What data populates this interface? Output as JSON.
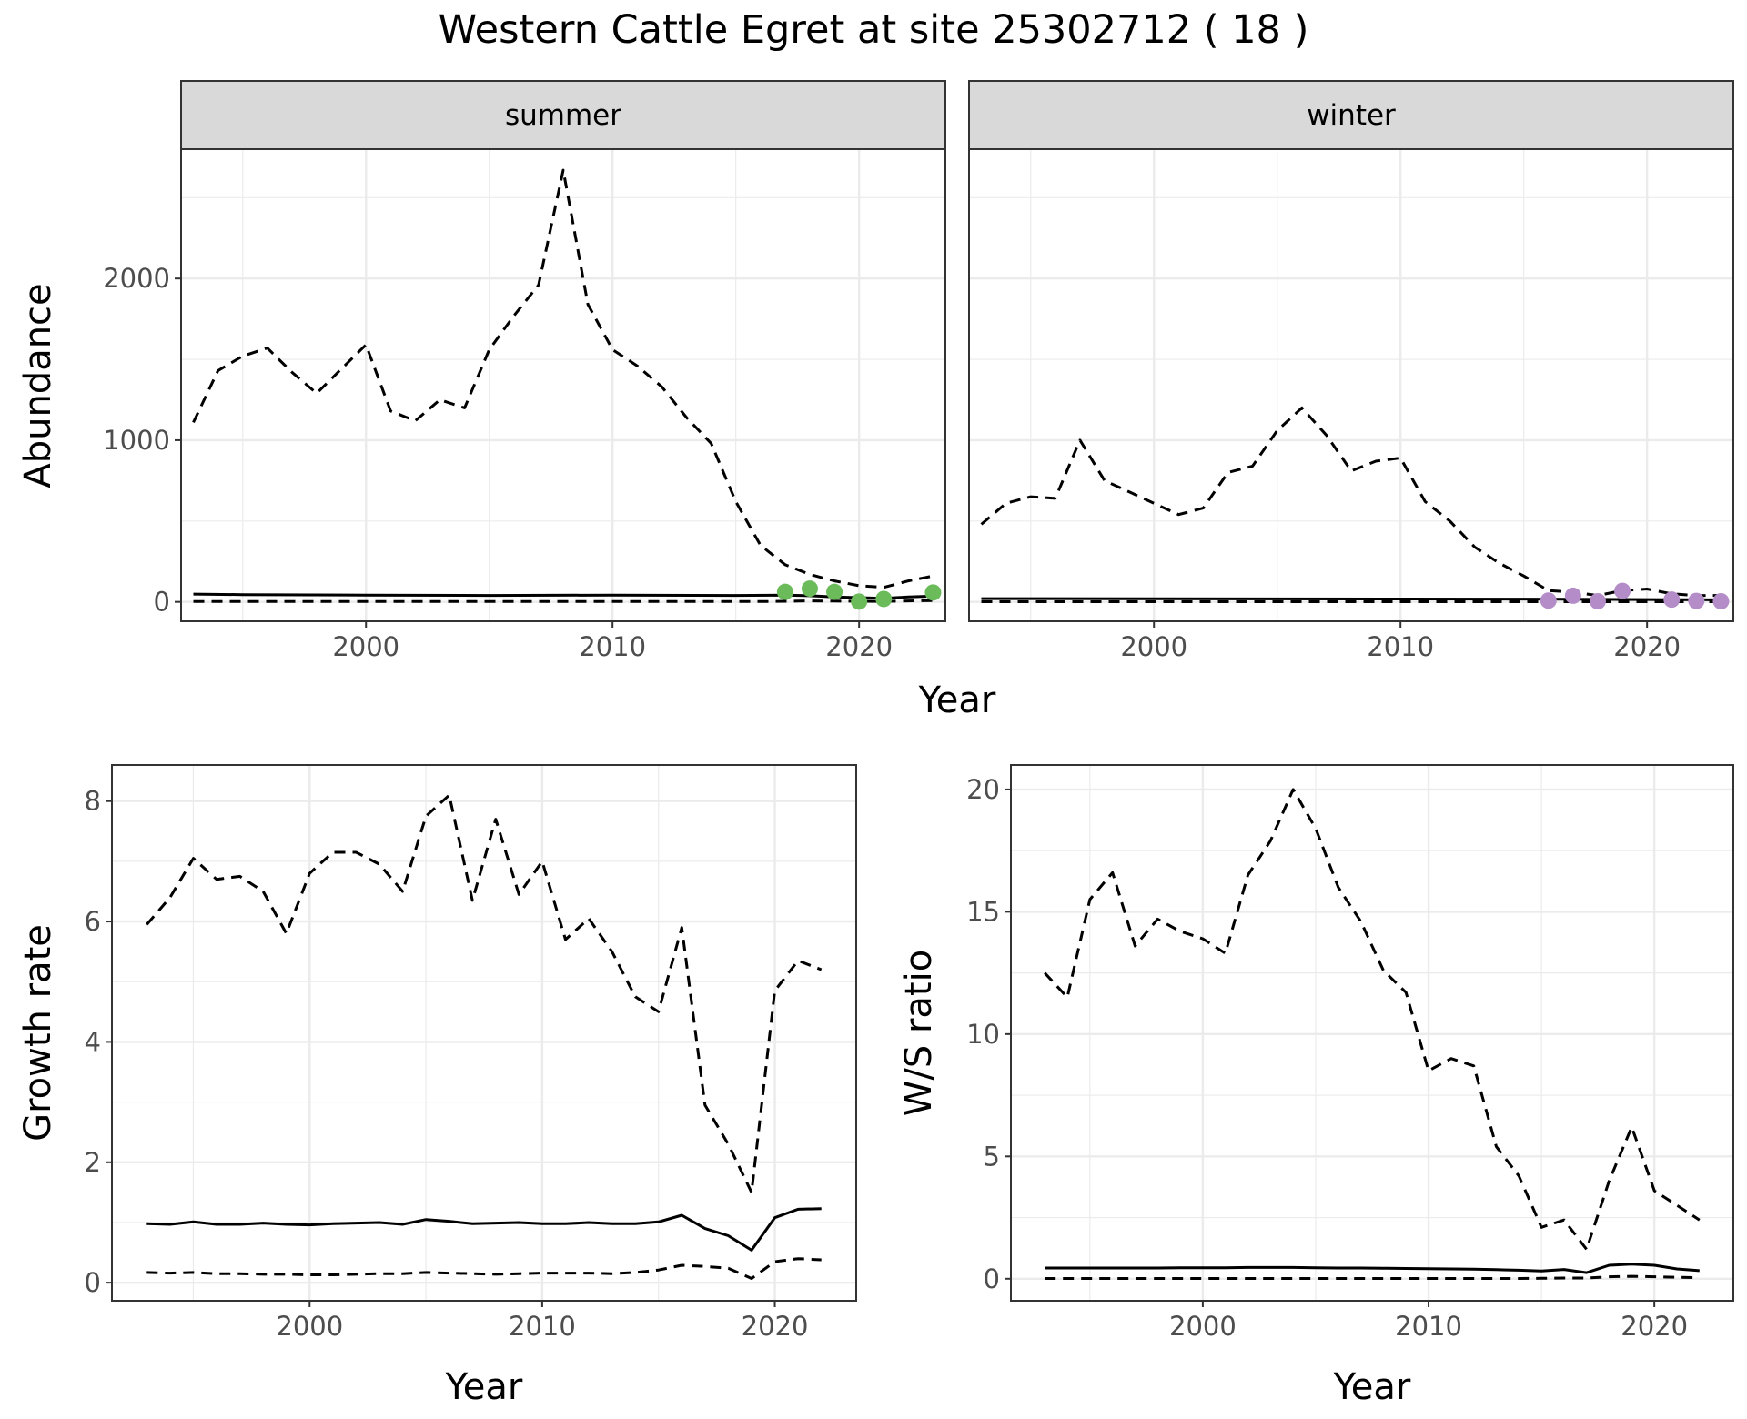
{
  "title": "Western Cattle Egret at site 25302712 ( 18 )",
  "colors": {
    "summer_points": "#6BBB5A",
    "winter_points": "#B48DC8",
    "strip_bg": "#D9D9D9",
    "grid": "#EBEBEB",
    "panel_border": "#333333"
  },
  "chart_data": [
    {
      "type": "line",
      "facets": [
        "summer",
        "winter"
      ],
      "xlabel": "Year",
      "ylabel": "Abundance",
      "xlim": [
        1992.5,
        2023.5
      ],
      "ylim": [
        -120,
        2800
      ],
      "xticks": [
        2000,
        2010,
        2020
      ],
      "yticks": [
        0,
        1000,
        2000
      ],
      "grid": true,
      "panels": [
        {
          "name": "summer",
          "upper": {
            "x": [
              1993,
              1994,
              1995,
              1996,
              1997,
              1998,
              1999,
              2000,
              2001,
              2002,
              2003,
              2004,
              2005,
              2006,
              2007,
              2008,
              2009,
              2010,
              2011,
              2012,
              2013,
              2014,
              2015,
              2016,
              2017,
              2018,
              2019,
              2020,
              2021,
              2022,
              2023
            ],
            "y": [
              1110,
              1430,
              1520,
              1570,
              1420,
              1290,
              1440,
              1590,
              1180,
              1120,
              1250,
              1200,
              1560,
              1770,
              1960,
              2670,
              1840,
              1560,
              1460,
              1330,
              1140,
              980,
              620,
              350,
              230,
              170,
              130,
              100,
              90,
              130,
              160
            ]
          },
          "mean": {
            "x": [
              1993,
              1995,
              2000,
              2005,
              2010,
              2015,
              2017,
              2018,
              2019,
              2020,
              2021,
              2022,
              2023
            ],
            "y": [
              48,
              45,
              42,
              40,
              42,
              40,
              42,
              38,
              30,
              26,
              22,
              30,
              36
            ]
          },
          "lower": {
            "x": [
              1993,
              2000,
              2010,
              2016,
              2017,
              2018,
              2019,
              2020,
              2021,
              2022,
              2023
            ],
            "y": [
              2,
              2,
              2,
              2,
              4,
              6,
              5,
              4,
              3,
              6,
              8
            ]
          },
          "points": {
            "x": [
              2017,
              2018,
              2019,
              2020,
              2021,
              2023
            ],
            "y": [
              62,
              82,
              62,
              2,
              18,
              58
            ]
          }
        },
        {
          "name": "winter",
          "upper": {
            "x": [
              1993,
              1994,
              1995,
              1996,
              1997,
              1998,
              1999,
              2000,
              2001,
              2002,
              2003,
              2004,
              2005,
              2006,
              2007,
              2008,
              2009,
              2010,
              2011,
              2012,
              2013,
              2014,
              2015,
              2016,
              2017,
              2018,
              2019,
              2020,
              2021,
              2022,
              2023
            ],
            "y": [
              480,
              610,
              650,
              640,
              1000,
              750,
              680,
              610,
              540,
              580,
              800,
              840,
              1060,
              1200,
              1030,
              810,
              870,
              890,
              620,
              500,
              340,
              240,
              160,
              70,
              60,
              40,
              70,
              80,
              50,
              40,
              40
            ]
          },
          "mean": {
            "x": [
              1993,
              2000,
              2010,
              2015,
              2017,
              2019,
              2021,
              2023
            ],
            "y": [
              20,
              19,
              18,
              17,
              16,
              15,
              14,
              13
            ]
          },
          "lower": {
            "x": [
              1993,
              2000,
              2010,
              2016,
              2020,
              2023
            ],
            "y": [
              1,
              1,
              1,
              1,
              1,
              1
            ]
          },
          "points": {
            "x": [
              2016,
              2017,
              2018,
              2019,
              2021,
              2022,
              2023
            ],
            "y": [
              8,
              38,
              4,
              68,
              14,
              6,
              4
            ]
          }
        }
      ]
    },
    {
      "type": "line",
      "xlabel": "Year",
      "ylabel": "Growth rate",
      "xlim": [
        1991.5,
        2023.5
      ],
      "ylim": [
        -0.3,
        8.6
      ],
      "xticks": [
        2000,
        2010,
        2020
      ],
      "yticks": [
        0,
        2,
        4,
        6,
        8
      ],
      "grid": true,
      "series": [
        {
          "x": [
            1993,
            1994,
            1995,
            1996,
            1997,
            1998,
            1999,
            2000,
            2001,
            2002,
            2003,
            2004,
            2005,
            2006,
            2007,
            2008,
            2009,
            2010,
            2011,
            2012,
            2013,
            2014,
            2015,
            2016,
            2017,
            2018,
            2019,
            2020,
            2021,
            2022
          ],
          "upper": [
            5.95,
            6.4,
            7.05,
            6.7,
            6.75,
            6.5,
            5.8,
            6.8,
            7.15,
            7.15,
            6.95,
            6.5,
            7.75,
            8.1,
            6.35,
            7.7,
            6.45,
            7.0,
            5.7,
            6.05,
            5.5,
            4.75,
            4.5,
            5.9,
            2.95,
            2.3,
            1.5,
            4.85,
            5.35,
            5.2
          ],
          "mean": [
            0.98,
            0.97,
            1.01,
            0.97,
            0.97,
            0.99,
            0.97,
            0.96,
            0.98,
            0.99,
            1.0,
            0.97,
            1.05,
            1.02,
            0.98,
            0.99,
            1.0,
            0.98,
            0.98,
            1.0,
            0.98,
            0.98,
            1.01,
            1.12,
            0.9,
            0.78,
            0.54,
            1.08,
            1.22,
            1.23
          ],
          "lower": [
            0.17,
            0.16,
            0.17,
            0.15,
            0.15,
            0.14,
            0.14,
            0.13,
            0.13,
            0.14,
            0.15,
            0.15,
            0.17,
            0.16,
            0.15,
            0.14,
            0.15,
            0.16,
            0.16,
            0.16,
            0.15,
            0.17,
            0.21,
            0.29,
            0.27,
            0.24,
            0.07,
            0.35,
            0.4,
            0.38
          ]
        }
      ]
    },
    {
      "type": "line",
      "xlabel": "Year",
      "ylabel": "W/S ratio",
      "xlim": [
        1991.5,
        2023.5
      ],
      "ylim": [
        -0.9,
        21.0
      ],
      "xticks": [
        2000,
        2010,
        2020
      ],
      "yticks": [
        0,
        5,
        10,
        15,
        20
      ],
      "grid": true,
      "series": [
        {
          "x": [
            1993,
            1994,
            1995,
            1996,
            1997,
            1998,
            1999,
            2000,
            2001,
            2002,
            2003,
            2004,
            2005,
            2006,
            2007,
            2008,
            2009,
            2010,
            2011,
            2012,
            2013,
            2014,
            2015,
            2016,
            2017,
            2018,
            2019,
            2020,
            2021,
            2022
          ],
          "upper": [
            12.5,
            11.5,
            15.5,
            16.6,
            13.6,
            14.7,
            14.2,
            13.9,
            13.3,
            16.5,
            17.9,
            20.0,
            18.4,
            16.0,
            14.6,
            12.6,
            11.7,
            8.5,
            9.0,
            8.7,
            5.4,
            4.2,
            2.1,
            2.4,
            1.2,
            4.0,
            6.2,
            3.6,
            3.0,
            2.4
          ],
          "mean": [
            0.44,
            0.44,
            0.44,
            0.44,
            0.44,
            0.44,
            0.45,
            0.45,
            0.45,
            0.46,
            0.46,
            0.46,
            0.45,
            0.44,
            0.44,
            0.43,
            0.42,
            0.41,
            0.4,
            0.39,
            0.37,
            0.35,
            0.32,
            0.38,
            0.25,
            0.55,
            0.6,
            0.55,
            0.4,
            0.33
          ],
          "lower": [
            0.01,
            0.01,
            0.01,
            0.01,
            0.01,
            0.01,
            0.01,
            0.01,
            0.01,
            0.01,
            0.01,
            0.01,
            0.01,
            0.01,
            0.01,
            0.01,
            0.01,
            0.01,
            0.01,
            0.01,
            0.01,
            0.01,
            0.02,
            0.03,
            0.03,
            0.08,
            0.1,
            0.08,
            0.06,
            0.04
          ]
        }
      ]
    }
  ]
}
